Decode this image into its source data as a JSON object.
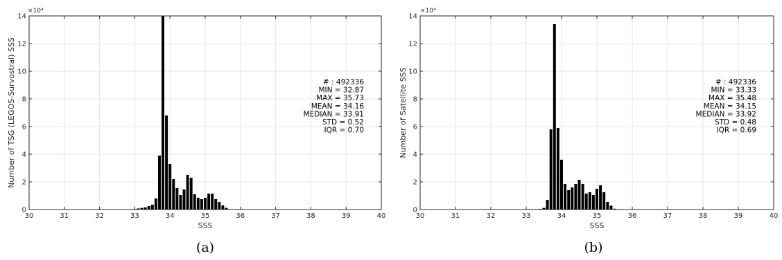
{
  "chart_data": [
    {
      "type": "bar",
      "panel": "(a)",
      "xlabel": "SSS",
      "ylabel": "Number of TSG (LEGOS-Survostral) SSS",
      "xlim": [
        30,
        40
      ],
      "ylim": [
        0,
        14
      ],
      "y_multiplier_label": "×10⁴",
      "xticks": [
        "30",
        "31",
        "32",
        "33",
        "34",
        "35",
        "36",
        "37",
        "38",
        "39",
        "40"
      ],
      "yticks": [
        "0",
        "2",
        "4",
        "6",
        "8",
        "10",
        "12",
        "14"
      ],
      "grid": true,
      "bar_color": "#000000",
      "x": [
        32.9,
        33.0,
        33.1,
        33.2,
        33.3,
        33.4,
        33.5,
        33.6,
        33.7,
        33.8,
        33.9,
        34.0,
        34.1,
        34.2,
        34.3,
        34.4,
        34.5,
        34.6,
        34.7,
        34.8,
        34.9,
        35.0,
        35.1,
        35.2,
        35.3,
        35.4,
        35.5,
        35.6,
        35.7
      ],
      "values": [
        0.02,
        0.04,
        0.08,
        0.12,
        0.16,
        0.25,
        0.35,
        0.8,
        3.9,
        14.0,
        6.8,
        3.3,
        2.2,
        1.55,
        1.05,
        1.45,
        2.5,
        2.3,
        1.1,
        0.85,
        0.75,
        0.85,
        1.15,
        1.15,
        0.75,
        0.55,
        0.3,
        0.12,
        0.03
      ],
      "stats": [
        "# : 492336",
        "MIN = 32.87",
        "MAX =  35.73",
        "MEAN = 34.16",
        "MEDIAN = 33.91",
        "STD = 0.52",
        "IQR = 0.70"
      ]
    },
    {
      "type": "bar",
      "panel": "(b)",
      "xlabel": "SSS",
      "ylabel": "Number of Satellite SSS",
      "xlim": [
        30,
        40
      ],
      "ylim": [
        0,
        14
      ],
      "y_multiplier_label": "×10⁴",
      "xticks": [
        "30",
        "31",
        "32",
        "33",
        "34",
        "35",
        "36",
        "37",
        "38",
        "39",
        "40"
      ],
      "yticks": [
        "0",
        "2",
        "4",
        "6",
        "8",
        "10",
        "12",
        "14"
      ],
      "grid": true,
      "bar_color": "#000000",
      "x": [
        33.3,
        33.4,
        33.5,
        33.6,
        33.7,
        33.8,
        33.9,
        34.0,
        34.1,
        34.2,
        34.3,
        34.4,
        34.5,
        34.6,
        34.7,
        34.8,
        34.9,
        35.0,
        35.1,
        35.2,
        35.3,
        35.4,
        35.5
      ],
      "values": [
        0.02,
        0.05,
        0.12,
        0.7,
        5.8,
        13.4,
        5.9,
        3.6,
        1.85,
        1.4,
        1.6,
        1.85,
        2.15,
        1.85,
        1.15,
        1.25,
        1.05,
        1.5,
        1.75,
        1.25,
        0.55,
        0.28,
        0.06
      ],
      "stats": [
        "# : 492336",
        "MIN = 33.33",
        "MAX =  35.48",
        "MEAN = 34.15",
        "MEDIAN = 33.92",
        "STD = 0.48",
        "IQR = 0.69"
      ]
    }
  ]
}
